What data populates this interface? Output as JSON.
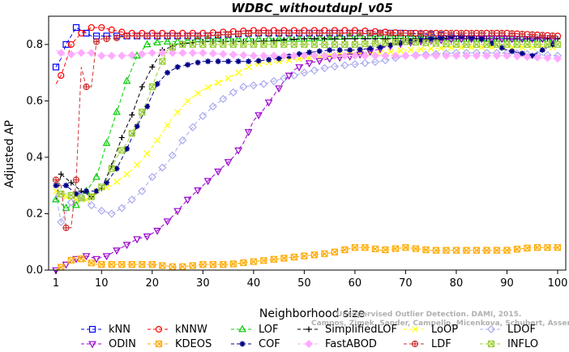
{
  "chart_data": {
    "type": "line",
    "title": "WDBC_withoutdupl_v05",
    "xlabel": "Neighborhood size",
    "ylabel": "Adjusted AP",
    "xlim": [
      1,
      100
    ],
    "ylim": [
      0,
      0.88
    ],
    "xticks": [
      1,
      10,
      20,
      30,
      40,
      50,
      60,
      70,
      80,
      90,
      100
    ],
    "yticks": [
      0.0,
      0.2,
      0.4,
      0.6,
      0.8
    ],
    "ytick_labels": [
      "0.0",
      "0.2",
      "0.4",
      "0.6",
      "0.8"
    ],
    "grid": false,
    "legend_position": "bottom",
    "watermark": [
      "Unsupervised Outlier Detection. DAMI, 2015.",
      "Campos, Zimek, Sander, Campello, Micenkova, Schubert, Assent, Houle"
    ],
    "series": [
      {
        "name": "kNN",
        "color": "#0000ff",
        "marker": "square",
        "points": [
          [
            1,
            0.72
          ],
          [
            2,
            0.75
          ],
          [
            3,
            0.8
          ],
          [
            4,
            0.83
          ],
          [
            5,
            0.86
          ],
          [
            6,
            0.85
          ],
          [
            8,
            0.83
          ],
          [
            10,
            0.83
          ],
          [
            15,
            0.83
          ],
          [
            20,
            0.83
          ],
          [
            30,
            0.83
          ],
          [
            40,
            0.84
          ],
          [
            50,
            0.84
          ],
          [
            60,
            0.84
          ],
          [
            70,
            0.84
          ],
          [
            80,
            0.83
          ],
          [
            90,
            0.83
          ],
          [
            100,
            0.82
          ]
        ]
      },
      {
        "name": "kNNW",
        "color": "#ff0000",
        "marker": "circle",
        "points": [
          [
            1,
            0.66
          ],
          [
            2,
            0.69
          ],
          [
            3,
            0.74
          ],
          [
            4,
            0.8
          ],
          [
            5,
            0.82
          ],
          [
            6,
            0.84
          ],
          [
            8,
            0.86
          ],
          [
            10,
            0.86
          ],
          [
            15,
            0.84
          ],
          [
            20,
            0.84
          ],
          [
            30,
            0.84
          ],
          [
            40,
            0.85
          ],
          [
            50,
            0.85
          ],
          [
            60,
            0.85
          ],
          [
            70,
            0.84
          ],
          [
            80,
            0.84
          ],
          [
            90,
            0.84
          ],
          [
            100,
            0.83
          ]
        ]
      },
      {
        "name": "LOF",
        "color": "#00cc00",
        "marker": "triangle-up",
        "points": [
          [
            1,
            0.25
          ],
          [
            3,
            0.22
          ],
          [
            5,
            0.23
          ],
          [
            7,
            0.28
          ],
          [
            9,
            0.33
          ],
          [
            11,
            0.45
          ],
          [
            13,
            0.56
          ],
          [
            15,
            0.67
          ],
          [
            17,
            0.76
          ],
          [
            19,
            0.8
          ],
          [
            22,
            0.81
          ],
          [
            25,
            0.81
          ],
          [
            30,
            0.82
          ],
          [
            40,
            0.82
          ],
          [
            50,
            0.82
          ],
          [
            60,
            0.83
          ],
          [
            70,
            0.83
          ],
          [
            80,
            0.82
          ],
          [
            90,
            0.82
          ],
          [
            100,
            0.82
          ]
        ]
      },
      {
        "name": "SimplifiedLOF",
        "color": "#000000",
        "marker": "plus",
        "points": [
          [
            1,
            0.25
          ],
          [
            2,
            0.34
          ],
          [
            4,
            0.31
          ],
          [
            6,
            0.28
          ],
          [
            8,
            0.26
          ],
          [
            10,
            0.29
          ],
          [
            12,
            0.37
          ],
          [
            14,
            0.47
          ],
          [
            16,
            0.55
          ],
          [
            18,
            0.65
          ],
          [
            20,
            0.72
          ],
          [
            22,
            0.78
          ],
          [
            25,
            0.8
          ],
          [
            30,
            0.81
          ],
          [
            40,
            0.81
          ],
          [
            50,
            0.82
          ],
          [
            60,
            0.82
          ],
          [
            70,
            0.82
          ],
          [
            80,
            0.82
          ],
          [
            90,
            0.82
          ],
          [
            100,
            0.82
          ]
        ]
      },
      {
        "name": "LoOP",
        "color": "#ffff00",
        "marker": "x",
        "points": [
          [
            1,
            0.28
          ],
          [
            4,
            0.25
          ],
          [
            7,
            0.25
          ],
          [
            9,
            0.28
          ],
          [
            12,
            0.3
          ],
          [
            15,
            0.34
          ],
          [
            18,
            0.39
          ],
          [
            21,
            0.46
          ],
          [
            24,
            0.54
          ],
          [
            27,
            0.6
          ],
          [
            30,
            0.64
          ],
          [
            35,
            0.68
          ],
          [
            40,
            0.73
          ],
          [
            45,
            0.74
          ],
          [
            50,
            0.75
          ],
          [
            55,
            0.76
          ],
          [
            60,
            0.77
          ],
          [
            65,
            0.77
          ],
          [
            70,
            0.78
          ],
          [
            80,
            0.79
          ],
          [
            90,
            0.79
          ],
          [
            100,
            0.79
          ]
        ]
      },
      {
        "name": "LDOF",
        "color": "#aaaaee",
        "marker": "diamond",
        "points": [
          [
            1,
            0.27
          ],
          [
            2,
            0.17
          ],
          [
            4,
            0.24
          ],
          [
            6,
            0.26
          ],
          [
            8,
            0.23
          ],
          [
            10,
            0.21
          ],
          [
            12,
            0.2
          ],
          [
            14,
            0.22
          ],
          [
            16,
            0.25
          ],
          [
            18,
            0.28
          ],
          [
            20,
            0.33
          ],
          [
            23,
            0.38
          ],
          [
            26,
            0.46
          ],
          [
            29,
            0.53
          ],
          [
            32,
            0.58
          ],
          [
            35,
            0.62
          ],
          [
            38,
            0.65
          ],
          [
            42,
            0.66
          ],
          [
            46,
            0.68
          ],
          [
            50,
            0.7
          ],
          [
            55,
            0.72
          ],
          [
            60,
            0.73
          ],
          [
            65,
            0.74
          ],
          [
            70,
            0.76
          ],
          [
            80,
            0.77
          ],
          [
            90,
            0.77
          ],
          [
            100,
            0.76
          ]
        ]
      },
      {
        "name": "ODIN",
        "color": "#9900cc",
        "marker": "triangle-down",
        "points": [
          [
            1,
            0.0
          ],
          [
            3,
            0.02
          ],
          [
            5,
            0.04
          ],
          [
            7,
            0.05
          ],
          [
            9,
            0.04
          ],
          [
            11,
            0.05
          ],
          [
            13,
            0.07
          ],
          [
            15,
            0.09
          ],
          [
            17,
            0.11
          ],
          [
            19,
            0.12
          ],
          [
            21,
            0.14
          ],
          [
            24,
            0.19
          ],
          [
            27,
            0.25
          ],
          [
            30,
            0.3
          ],
          [
            33,
            0.35
          ],
          [
            36,
            0.4
          ],
          [
            38,
            0.45
          ],
          [
            40,
            0.53
          ],
          [
            42,
            0.57
          ],
          [
            44,
            0.62
          ],
          [
            46,
            0.67
          ],
          [
            48,
            0.71
          ],
          [
            50,
            0.73
          ],
          [
            55,
            0.75
          ],
          [
            60,
            0.76
          ],
          [
            64,
            0.78
          ],
          [
            68,
            0.8
          ],
          [
            72,
            0.81
          ],
          [
            80,
            0.82
          ],
          [
            90,
            0.82
          ],
          [
            100,
            0.82
          ]
        ]
      },
      {
        "name": "KDEOS",
        "color": "#ffaa00",
        "marker": "square-x",
        "points": [
          [
            1,
            0.0
          ],
          [
            3,
            0.02
          ],
          [
            5,
            0.05
          ],
          [
            7,
            0.03
          ],
          [
            9,
            0.02
          ],
          [
            11,
            0.02
          ],
          [
            15,
            0.02
          ],
          [
            20,
            0.02
          ],
          [
            25,
            0.01
          ],
          [
            30,
            0.02
          ],
          [
            35,
            0.02
          ],
          [
            40,
            0.03
          ],
          [
            45,
            0.04
          ],
          [
            50,
            0.05
          ],
          [
            55,
            0.06
          ],
          [
            60,
            0.08
          ],
          [
            63,
            0.08
          ],
          [
            65,
            0.07
          ],
          [
            70,
            0.08
          ],
          [
            75,
            0.07
          ],
          [
            80,
            0.07
          ],
          [
            85,
            0.07
          ],
          [
            90,
            0.07
          ],
          [
            95,
            0.08
          ],
          [
            100,
            0.08
          ]
        ]
      },
      {
        "name": "COF",
        "color": "#000088",
        "marker": "asterisk",
        "points": [
          [
            1,
            0.3
          ],
          [
            3,
            0.3
          ],
          [
            5,
            0.27
          ],
          [
            7,
            0.28
          ],
          [
            9,
            0.28
          ],
          [
            11,
            0.31
          ],
          [
            13,
            0.36
          ],
          [
            15,
            0.43
          ],
          [
            17,
            0.51
          ],
          [
            19,
            0.58
          ],
          [
            21,
            0.66
          ],
          [
            23,
            0.7
          ],
          [
            25,
            0.72
          ],
          [
            30,
            0.74
          ],
          [
            35,
            0.74
          ],
          [
            40,
            0.74
          ],
          [
            45,
            0.75
          ],
          [
            50,
            0.77
          ],
          [
            55,
            0.78
          ],
          [
            60,
            0.78
          ],
          [
            65,
            0.79
          ],
          [
            70,
            0.81
          ],
          [
            75,
            0.82
          ],
          [
            80,
            0.83
          ],
          [
            85,
            0.82
          ],
          [
            90,
            0.78
          ],
          [
            95,
            0.76
          ],
          [
            100,
            0.81
          ]
        ]
      },
      {
        "name": "FastABOD",
        "color": "#ffaaff",
        "marker": "diamond-filled",
        "points": [
          [
            1,
            0.78
          ],
          [
            3,
            0.76
          ],
          [
            5,
            0.77
          ],
          [
            8,
            0.77
          ],
          [
            10,
            0.76
          ],
          [
            15,
            0.76
          ],
          [
            20,
            0.77
          ],
          [
            30,
            0.77
          ],
          [
            40,
            0.76
          ],
          [
            50,
            0.76
          ],
          [
            60,
            0.76
          ],
          [
            70,
            0.76
          ],
          [
            80,
            0.76
          ],
          [
            90,
            0.76
          ],
          [
            100,
            0.75
          ]
        ]
      },
      {
        "name": "LDF",
        "color": "#cc3333",
        "marker": "circle-plus",
        "points": [
          [
            1,
            0.32
          ],
          [
            2,
            0.3
          ],
          [
            3,
            0.15
          ],
          [
            4,
            0.15
          ],
          [
            5,
            0.32
          ],
          [
            6,
            0.72
          ],
          [
            7,
            0.65
          ],
          [
            8,
            0.65
          ],
          [
            9,
            0.81
          ],
          [
            10,
            0.82
          ],
          [
            12,
            0.82
          ],
          [
            15,
            0.83
          ],
          [
            20,
            0.83
          ],
          [
            30,
            0.83
          ],
          [
            40,
            0.84
          ],
          [
            50,
            0.84
          ],
          [
            60,
            0.84
          ],
          [
            70,
            0.84
          ],
          [
            80,
            0.84
          ],
          [
            90,
            0.84
          ],
          [
            100,
            0.83
          ]
        ]
      },
      {
        "name": "INFLO",
        "color": "#99cc33",
        "marker": "square-x",
        "points": [
          [
            1,
            0.27
          ],
          [
            3,
            0.27
          ],
          [
            5,
            0.26
          ],
          [
            7,
            0.25
          ],
          [
            9,
            0.27
          ],
          [
            11,
            0.32
          ],
          [
            13,
            0.4
          ],
          [
            15,
            0.45
          ],
          [
            17,
            0.52
          ],
          [
            19,
            0.6
          ],
          [
            21,
            0.7
          ],
          [
            23,
            0.78
          ],
          [
            25,
            0.8
          ],
          [
            30,
            0.8
          ],
          [
            40,
            0.8
          ],
          [
            50,
            0.8
          ],
          [
            60,
            0.8
          ],
          [
            70,
            0.81
          ],
          [
            80,
            0.8
          ],
          [
            90,
            0.8
          ],
          [
            100,
            0.8
          ]
        ]
      }
    ]
  }
}
